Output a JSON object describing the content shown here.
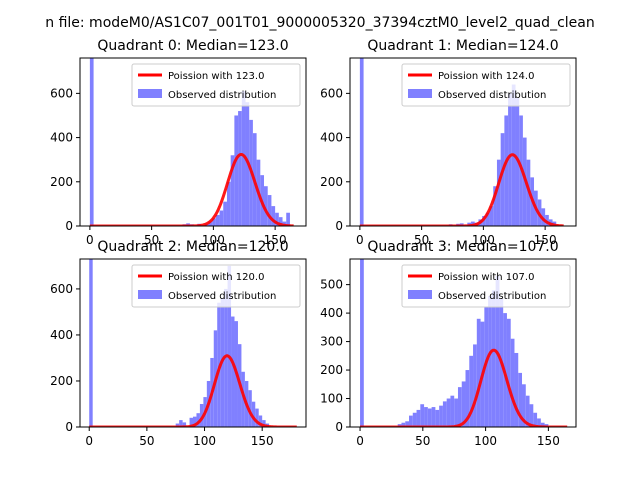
{
  "figure": {
    "suptitle": "n file: modeM0/AS1C07_001T01_9000005320_37394cztM0_level2_quad_clean",
    "colors": {
      "poisson": "#ff0000",
      "observed": "#8080ff"
    }
  },
  "chart_data": [
    {
      "type": "bar",
      "title": "Quadrant 0: Median=123.0",
      "median": 123.0,
      "xlim": [
        -8,
        175
      ],
      "ylim": [
        0,
        760
      ],
      "xticks": [
        0,
        50,
        100,
        150
      ],
      "yticks": [
        0,
        200,
        400,
        600
      ],
      "legend_position": "top-right",
      "series": [
        {
          "name": "Poission with 123.0",
          "type": "line",
          "mean": 123.0,
          "scale": 9000,
          "x_range": [
            0,
            165
          ]
        },
        {
          "name": "Observed distribution",
          "type": "histogram",
          "bin_width": 3,
          "bins": [
            [
              0,
              760
            ],
            [
              75,
              8
            ],
            [
              78,
              12
            ],
            [
              81,
              8
            ],
            [
              87,
              10
            ],
            [
              93,
              10
            ],
            [
              96,
              20
            ],
            [
              99,
              35
            ],
            [
              102,
              50
            ],
            [
              105,
              70
            ],
            [
              108,
              110
            ],
            [
              111,
              200
            ],
            [
              114,
              320
            ],
            [
              117,
              500
            ],
            [
              120,
              520
            ],
            [
              123,
              610
            ],
            [
              126,
              560
            ],
            [
              129,
              480
            ],
            [
              132,
              420
            ],
            [
              135,
              300
            ],
            [
              138,
              230
            ],
            [
              141,
              180
            ],
            [
              144,
              140
            ],
            [
              147,
              90
            ],
            [
              150,
              60
            ],
            [
              153,
              40
            ],
            [
              156,
              20
            ],
            [
              159,
              60
            ]
          ]
        }
      ]
    },
    {
      "type": "bar",
      "title": "Quadrant 1: Median=124.0",
      "median": 124.0,
      "xlim": [
        -8,
        175
      ],
      "ylim": [
        0,
        760
      ],
      "xticks": [
        0,
        50,
        100,
        150
      ],
      "yticks": [
        0,
        200,
        400,
        600
      ],
      "legend_position": "top-right",
      "series": [
        {
          "name": "Poission with 124.0",
          "type": "line",
          "mean": 124.0,
          "scale": 9000,
          "x_range": [
            0,
            165
          ]
        },
        {
          "name": "Observed distribution",
          "type": "histogram",
          "bin_width": 3,
          "bins": [
            [
              0,
              760
            ],
            [
              72,
              8
            ],
            [
              78,
              10
            ],
            [
              81,
              12
            ],
            [
              87,
              15
            ],
            [
              90,
              20
            ],
            [
              93,
              15
            ],
            [
              96,
              30
            ],
            [
              99,
              45
            ],
            [
              102,
              60
            ],
            [
              105,
              90
            ],
            [
              108,
              180
            ],
            [
              111,
              300
            ],
            [
              114,
              420
            ],
            [
              117,
              500
            ],
            [
              120,
              600
            ],
            [
              123,
              640
            ],
            [
              126,
              580
            ],
            [
              129,
              500
            ],
            [
              132,
              400
            ],
            [
              135,
              300
            ],
            [
              138,
              220
            ],
            [
              141,
              160
            ],
            [
              144,
              120
            ],
            [
              147,
              80
            ],
            [
              150,
              50
            ],
            [
              153,
              30
            ],
            [
              156,
              20
            ]
          ]
        }
      ]
    },
    {
      "type": "bar",
      "title": "Quadrant 2: Median=120.0",
      "median": 120.0,
      "xlim": [
        -8,
        188
      ],
      "ylim": [
        0,
        730
      ],
      "xticks": [
        0,
        50,
        100,
        150
      ],
      "yticks": [
        0,
        200,
        400,
        600
      ],
      "legend_position": "top-right",
      "series": [
        {
          "name": "Poission with 120.0",
          "type": "line",
          "mean": 120.0,
          "scale": 8500,
          "x_range": [
            0,
            180
          ]
        },
        {
          "name": "Observed distribution",
          "type": "histogram",
          "bin_width": 3,
          "bins": [
            [
              0,
              730
            ],
            [
              75,
              15
            ],
            [
              78,
              30
            ],
            [
              81,
              20
            ],
            [
              87,
              40
            ],
            [
              90,
              45
            ],
            [
              93,
              60
            ],
            [
              96,
              100
            ],
            [
              99,
              130
            ],
            [
              102,
              200
            ],
            [
              105,
              300
            ],
            [
              108,
              420
            ],
            [
              111,
              540
            ],
            [
              114,
              560
            ],
            [
              117,
              600
            ],
            [
              120,
              700
            ],
            [
              123,
              480
            ],
            [
              126,
              460
            ],
            [
              129,
              360
            ],
            [
              132,
              240
            ],
            [
              135,
              200
            ],
            [
              138,
              160
            ],
            [
              141,
              110
            ],
            [
              144,
              80
            ],
            [
              147,
              50
            ],
            [
              150,
              30
            ],
            [
              153,
              15
            ]
          ]
        }
      ]
    },
    {
      "type": "bar",
      "title": "Quadrant 3: Median=107.0",
      "median": 107.0,
      "xlim": [
        -8,
        172
      ],
      "ylim": [
        0,
        590
      ],
      "xticks": [
        0,
        50,
        100,
        150
      ],
      "yticks": [
        0,
        100,
        200,
        300,
        400,
        500
      ],
      "legend_position": "top-right",
      "series": [
        {
          "name": "Poission with 107.0",
          "type": "line",
          "mean": 107.0,
          "scale": 7000,
          "x_range": [
            0,
            165
          ]
        },
        {
          "name": "Observed distribution",
          "type": "histogram",
          "bin_width": 3,
          "bins": [
            [
              0,
              590
            ],
            [
              30,
              10
            ],
            [
              33,
              15
            ],
            [
              36,
              20
            ],
            [
              39,
              40
            ],
            [
              42,
              50
            ],
            [
              45,
              60
            ],
            [
              48,
              80
            ],
            [
              51,
              70
            ],
            [
              54,
              65
            ],
            [
              57,
              70
            ],
            [
              60,
              60
            ],
            [
              63,
              75
            ],
            [
              66,
              90
            ],
            [
              69,
              100
            ],
            [
              72,
              110
            ],
            [
              75,
              100
            ],
            [
              78,
              140
            ],
            [
              81,
              160
            ],
            [
              84,
              200
            ],
            [
              87,
              250
            ],
            [
              90,
              290
            ],
            [
              93,
              380
            ],
            [
              96,
              370
            ],
            [
              99,
              420
            ],
            [
              102,
              460
            ],
            [
              105,
              480
            ],
            [
              108,
              530
            ],
            [
              111,
              450
            ],
            [
              114,
              400
            ],
            [
              117,
              380
            ],
            [
              120,
              310
            ],
            [
              123,
              260
            ],
            [
              126,
              190
            ],
            [
              129,
              150
            ],
            [
              132,
              110
            ],
            [
              135,
              80
            ],
            [
              138,
              50
            ],
            [
              141,
              30
            ],
            [
              144,
              15
            ],
            [
              147,
              10
            ]
          ]
        }
      ]
    }
  ]
}
